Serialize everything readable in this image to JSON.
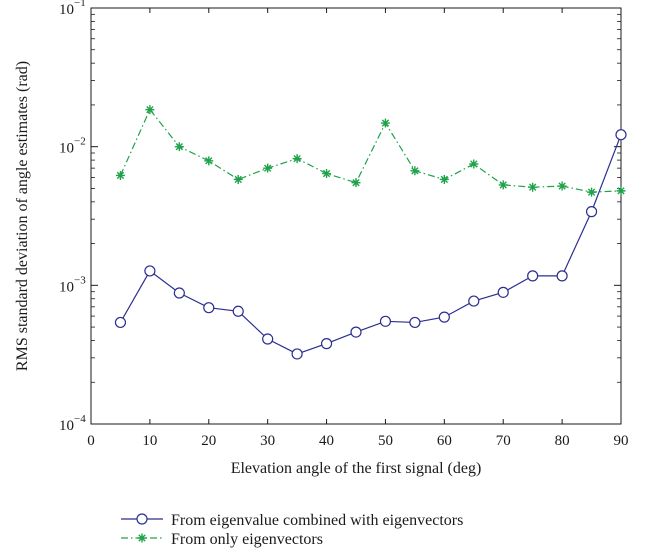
{
  "chart_data": {
    "type": "line",
    "title": "",
    "xlabel": "Elevation angle of the first signal (deg)",
    "ylabel": "RMS standard deviation of angle estimates (rad)",
    "xlim": [
      0,
      90
    ],
    "ylim": [
      0.0001,
      0.1
    ],
    "yscale": "log",
    "grid": false,
    "legend_position": "bottom",
    "x_ticks": [
      "0",
      "10",
      "20",
      "30",
      "40",
      "50",
      "60",
      "70",
      "80",
      "90"
    ],
    "y_ticks": [
      {
        "base": "10",
        "exp": "−4"
      },
      {
        "base": "10",
        "exp": "−3"
      },
      {
        "base": "10",
        "exp": "−2"
      },
      {
        "base": "10",
        "exp": "−1"
      }
    ],
    "x": [
      5,
      10,
      15,
      20,
      25,
      30,
      35,
      40,
      45,
      50,
      55,
      60,
      65,
      70,
      75,
      80,
      85,
      90
    ],
    "series": [
      {
        "name": "From eigenvalue combined with eigenvectors",
        "color": "#2b2f8f",
        "marker": "circle",
        "line_style": "solid",
        "values": [
          0.00054,
          0.00127,
          0.00088,
          0.00069,
          0.00065,
          0.00041,
          0.00032,
          0.00038,
          0.00046,
          0.00055,
          0.00054,
          0.00059,
          0.00077,
          0.00089,
          0.00117,
          0.00117,
          0.0034,
          0.0122
        ]
      },
      {
        "name": "From only eigenvectors",
        "color": "#1ea34a",
        "marker": "star",
        "line_style": "dash-dot",
        "values": [
          0.0062,
          0.0185,
          0.01,
          0.0079,
          0.0058,
          0.007,
          0.0082,
          0.0064,
          0.0055,
          0.0148,
          0.0067,
          0.0058,
          0.0075,
          0.0053,
          0.0051,
          0.0052,
          0.0047,
          0.0048
        ]
      }
    ]
  }
}
